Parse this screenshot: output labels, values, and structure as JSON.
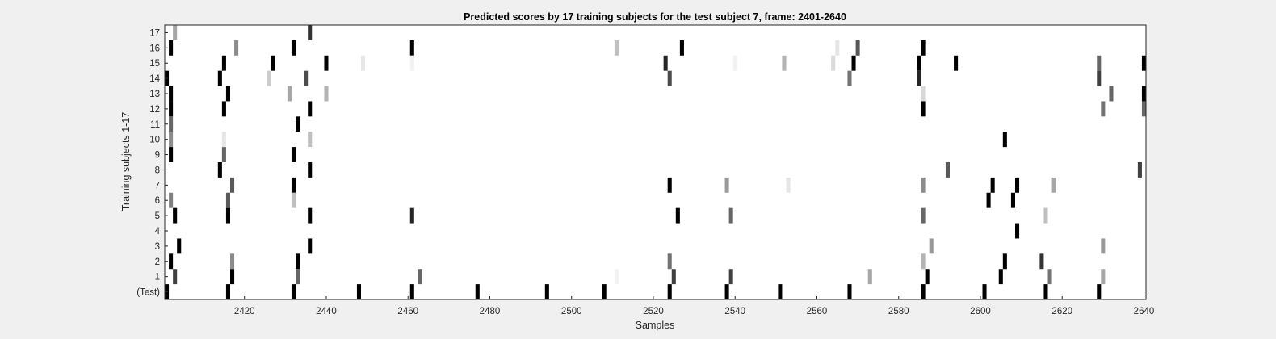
{
  "chart_data": {
    "type": "heatmap",
    "title": "Predicted scores by 17 training subjects for the test subject 7, frame: 2401-2640",
    "xlabel": "Samples",
    "ylabel": "Training subjects 1-17",
    "xlim": [
      2401,
      2640
    ],
    "xticks": [
      2420,
      2440,
      2460,
      2480,
      2500,
      2520,
      2540,
      2560,
      2580,
      2600,
      2620,
      2640
    ],
    "yticklabels": [
      "17",
      "16",
      "15",
      "14",
      "13",
      "12",
      "11",
      "10",
      "9",
      "8",
      "7",
      "6",
      "5",
      "4",
      "3",
      "2",
      "1",
      "(Test)"
    ],
    "grid": false,
    "colormap": "gray (white = 0, black = 1)",
    "rows": [
      {
        "label": "17",
        "marks": [
          [
            2403,
            0.35
          ],
          [
            2436,
            0.8
          ]
        ]
      },
      {
        "label": "16",
        "marks": [
          [
            2402,
            1.0
          ],
          [
            2418,
            0.45
          ],
          [
            2432,
            1.0
          ],
          [
            2461,
            1.0
          ],
          [
            2511,
            0.25
          ],
          [
            2527,
            1.0
          ],
          [
            2565,
            0.1
          ],
          [
            2570,
            0.65
          ],
          [
            2586,
            1.0
          ]
        ]
      },
      {
        "label": "15",
        "marks": [
          [
            2415,
            1.0
          ],
          [
            2427,
            1.0
          ],
          [
            2440,
            1.0
          ],
          [
            2449,
            0.1
          ],
          [
            2461,
            0.05
          ],
          [
            2523,
            0.85
          ],
          [
            2540,
            0.05
          ],
          [
            2552,
            0.3
          ],
          [
            2564,
            0.15
          ],
          [
            2569,
            1.0
          ],
          [
            2585,
            1.0
          ],
          [
            2594,
            1.0
          ],
          [
            2629,
            0.6
          ],
          [
            2640,
            1.0
          ]
        ]
      },
      {
        "label": "14",
        "marks": [
          [
            2401,
            1.0
          ],
          [
            2414,
            1.0
          ],
          [
            2426,
            0.2
          ],
          [
            2435,
            0.7
          ],
          [
            2524,
            0.7
          ],
          [
            2568,
            0.55
          ],
          [
            2585,
            0.85
          ],
          [
            2629,
            0.75
          ]
        ]
      },
      {
        "label": "13",
        "marks": [
          [
            2402,
            1.0
          ],
          [
            2416,
            1.0
          ],
          [
            2431,
            0.35
          ],
          [
            2440,
            0.3
          ],
          [
            2586,
            0.15
          ],
          [
            2632,
            0.6
          ],
          [
            2640,
            1.0
          ]
        ]
      },
      {
        "label": "12",
        "marks": [
          [
            2402,
            1.0
          ],
          [
            2415,
            1.0
          ],
          [
            2436,
            1.0
          ],
          [
            2586,
            1.0
          ],
          [
            2630,
            0.55
          ],
          [
            2640,
            0.6
          ]
        ]
      },
      {
        "label": "11",
        "marks": [
          [
            2402,
            0.6
          ],
          [
            2433,
            1.0
          ]
        ]
      },
      {
        "label": "10",
        "marks": [
          [
            2402,
            0.45
          ],
          [
            2415,
            0.1
          ],
          [
            2436,
            0.25
          ],
          [
            2606,
            1.0
          ]
        ]
      },
      {
        "label": "9",
        "marks": [
          [
            2402,
            1.0
          ],
          [
            2415,
            0.6
          ],
          [
            2432,
            1.0
          ]
        ]
      },
      {
        "label": "8",
        "marks": [
          [
            2414,
            1.0
          ],
          [
            2436,
            1.0
          ],
          [
            2592,
            0.65
          ],
          [
            2639,
            0.75
          ]
        ]
      },
      {
        "label": "7",
        "marks": [
          [
            2417,
            0.65
          ],
          [
            2432,
            1.0
          ],
          [
            2524,
            1.0
          ],
          [
            2538,
            0.4
          ],
          [
            2553,
            0.1
          ],
          [
            2586,
            0.45
          ],
          [
            2603,
            1.0
          ],
          [
            2609,
            1.0
          ],
          [
            2618,
            0.35
          ]
        ]
      },
      {
        "label": "6",
        "marks": [
          [
            2402,
            0.5
          ],
          [
            2416,
            0.65
          ],
          [
            2432,
            0.25
          ],
          [
            2602,
            1.0
          ],
          [
            2608,
            1.0
          ]
        ]
      },
      {
        "label": "5",
        "marks": [
          [
            2403,
            1.0
          ],
          [
            2416,
            1.0
          ],
          [
            2436,
            1.0
          ],
          [
            2461,
            0.85
          ],
          [
            2526,
            1.0
          ],
          [
            2539,
            0.6
          ],
          [
            2586,
            0.6
          ],
          [
            2616,
            0.25
          ]
        ]
      },
      {
        "label": "4",
        "marks": [
          [
            2609,
            1.0
          ]
        ]
      },
      {
        "label": "3",
        "marks": [
          [
            2404,
            1.0
          ],
          [
            2436,
            1.0
          ],
          [
            2588,
            0.4
          ],
          [
            2630,
            0.4
          ]
        ]
      },
      {
        "label": "2",
        "marks": [
          [
            2402,
            1.0
          ],
          [
            2417,
            0.45
          ],
          [
            2433,
            1.0
          ],
          [
            2524,
            0.55
          ],
          [
            2586,
            0.3
          ],
          [
            2606,
            1.0
          ],
          [
            2615,
            0.8
          ]
        ]
      },
      {
        "label": "1",
        "marks": [
          [
            2403,
            0.75
          ],
          [
            2417,
            1.0
          ],
          [
            2433,
            0.6
          ],
          [
            2463,
            0.6
          ],
          [
            2511,
            0.05
          ],
          [
            2525,
            0.75
          ],
          [
            2539,
            0.75
          ],
          [
            2573,
            0.35
          ],
          [
            2587,
            1.0
          ],
          [
            2605,
            1.0
          ],
          [
            2617,
            0.55
          ],
          [
            2630,
            0.35
          ]
        ]
      },
      {
        "label": "(Test)",
        "marks": [
          [
            2401,
            1.0
          ],
          [
            2416,
            1.0
          ],
          [
            2432,
            1.0
          ],
          [
            2448,
            1.0
          ],
          [
            2461,
            1.0
          ],
          [
            2477,
            1.0
          ],
          [
            2494,
            1.0
          ],
          [
            2508,
            1.0
          ],
          [
            2524,
            1.0
          ],
          [
            2538,
            1.0
          ],
          [
            2551,
            1.0
          ],
          [
            2568,
            1.0
          ],
          [
            2586,
            1.0
          ],
          [
            2601,
            1.0
          ],
          [
            2616,
            1.0
          ],
          [
            2629,
            1.0
          ]
        ]
      }
    ]
  }
}
